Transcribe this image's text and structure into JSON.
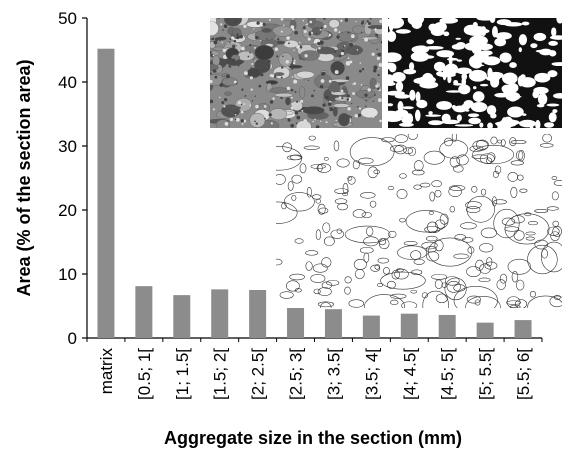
{
  "chart_data": {
    "type": "bar",
    "title": "",
    "xlabel": "Aggregate size in the section (mm)",
    "ylabel": "Area (% of the section area)",
    "ylim": [
      0,
      50
    ],
    "yticks": [
      0,
      10,
      20,
      30,
      40,
      50
    ],
    "categories": [
      "matrix",
      "[0.5; 1[",
      "[1; 1.5[",
      "[1.5; 2[",
      "[2; 2.5[",
      "[2.5; 3[",
      "[3; 3.5[",
      "[3.5; 4[",
      "[4; 4.5[",
      "[4.5; 5[",
      "[5; 5.5[",
      "[5.5; 6["
    ],
    "values": [
      45.2,
      8.1,
      6.7,
      7.6,
      7.5,
      6.1,
      4.5,
      3.5,
      3.8,
      3.6,
      2.4,
      2.8
    ],
    "bar_color": "#8c8c8c",
    "grid": false
  },
  "insets": [
    {
      "kind": "micrograph-grayscale"
    },
    {
      "kind": "micrograph-binary"
    },
    {
      "kind": "segmented-aggregate-outlines"
    }
  ]
}
